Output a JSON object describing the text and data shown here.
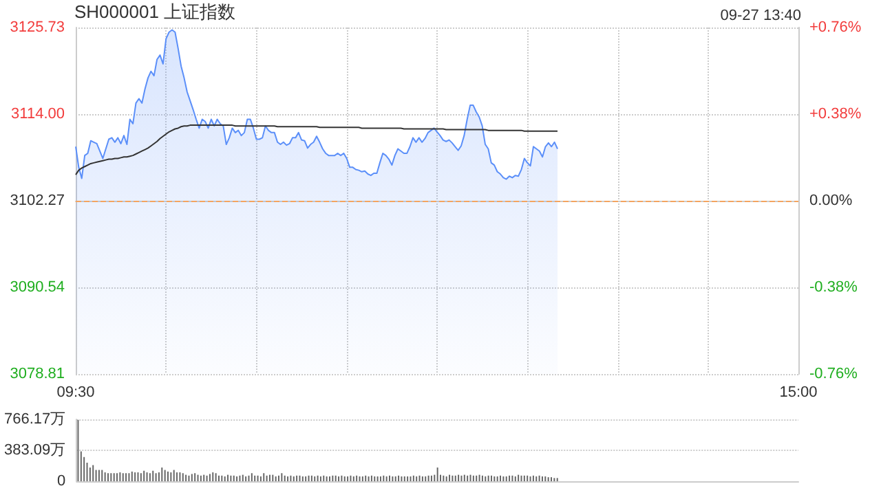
{
  "chart_data": [
    {
      "type": "line",
      "title": "SH000001 上证指数",
      "annotations": [
        "09-27 13:40"
      ],
      "categories": [
        "09:30",
        null,
        null,
        null,
        null,
        null,
        null,
        null,
        null,
        null,
        null,
        null,
        null,
        null,
        null,
        null,
        null,
        null,
        null,
        null,
        null,
        null,
        null,
        null,
        null,
        null,
        null,
        null,
        null,
        null,
        null,
        null,
        null,
        null,
        null,
        null,
        null,
        null,
        null,
        null,
        null,
        null,
        null,
        null,
        null,
        null,
        null,
        null,
        null,
        null,
        null,
        null,
        null,
        null,
        null,
        null,
        null,
        null,
        null,
        null,
        null,
        null,
        null,
        null,
        null,
        null,
        null,
        null,
        null,
        null,
        null,
        null,
        null,
        null,
        null,
        null,
        null,
        null,
        null,
        null,
        null,
        null,
        null,
        null,
        null,
        null,
        null,
        null,
        null,
        null,
        null,
        null,
        null,
        null,
        null,
        null,
        null,
        null,
        null,
        null,
        null,
        null,
        null,
        null,
        null,
        null,
        null,
        null,
        null,
        null,
        null,
        null,
        null,
        null,
        null,
        null,
        null,
        null,
        null,
        null,
        null,
        null,
        null,
        null,
        null,
        null,
        null,
        null,
        null,
        null,
        null,
        null,
        null,
        null,
        null,
        null,
        null,
        null,
        null,
        null,
        null,
        null,
        null,
        null,
        null,
        null,
        null,
        null,
        null,
        null,
        null,
        null,
        null,
        null,
        null,
        null,
        null,
        null,
        null,
        null,
        null,
        null,
        null,
        null,
        null,
        null,
        null,
        null,
        null,
        null,
        null,
        null,
        null,
        null,
        null,
        null,
        null,
        null,
        null,
        null,
        null,
        null,
        null,
        null,
        null,
        null,
        null,
        null,
        null,
        null,
        null,
        null,
        null,
        null,
        null,
        null,
        null,
        null,
        null,
        null,
        null,
        null,
        null,
        null,
        null,
        null,
        null,
        null,
        null,
        null,
        null,
        null,
        null,
        null,
        null,
        null,
        null,
        null,
        null,
        null,
        null,
        null,
        null,
        null,
        null,
        null,
        null,
        null,
        null,
        null,
        null,
        null,
        null,
        null,
        null,
        null,
        null,
        null,
        null,
        null,
        "15:00"
      ],
      "ylim": [
        3078.81,
        3125.73
      ],
      "yticks": [
        3078.81,
        3090.54,
        3102.27,
        {
          "value": 3114,
          "label": "3114.00"
        },
        3125.73
      ],
      "y2lim": [
        -0.76,
        0.76
      ],
      "y2ticks": [
        {
          "value": -0.76,
          "label": "-0.76%"
        },
        {
          "value": -0.38,
          "label": "-0.38%"
        },
        {
          "value": 0,
          "label": "0.00%"
        },
        {
          "value": 0.38,
          "label": "+0.38%"
        },
        {
          "value": 0.76,
          "label": "+0.76%"
        }
      ],
      "grid": true,
      "marker": "none",
      "line_style": "solid",
      "ref_lines": [
        {
          "axis": "y",
          "value": 3102.27,
          "color": "#f4a460",
          "line_style": "dashed"
        }
      ],
      "series": [
        {
          "type": "area",
          "color": "#5b8ff9",
          "values": [
            3109.6,
            3106.8,
            3105.3,
            3108.4,
            3108.7,
            3110.4,
            3110.2,
            3110.0,
            3109.0,
            3108.0,
            3109.3,
            3110.6,
            3110.8,
            3110.2,
            3110.8,
            3110.0,
            3111.1,
            3109.9,
            3113.3,
            3112.7,
            3115.5,
            3116.1,
            3115.5,
            3117.4,
            3118.9,
            3119.8,
            3119.2,
            3121.4,
            3122.0,
            3120.8,
            3124.2,
            3125.1,
            3125.4,
            3125.1,
            3122.9,
            3120.5,
            3118.9,
            3117.0,
            3115.8,
            3114.6,
            3113.3,
            3112.1,
            3113.3,
            3113.0,
            3112.1,
            3113.3,
            3112.4,
            3113.3,
            3112.7,
            3112.4,
            3109.9,
            3110.8,
            3112.1,
            3111.5,
            3111.8,
            3111.1,
            3111.5,
            3113.3,
            3113.3,
            3112.1,
            3110.6,
            3110.6,
            3110.8,
            3112.4,
            3111.8,
            3111.5,
            3111.5,
            3110.2,
            3109.9,
            3110.2,
            3109.8,
            3110.0,
            3110.8,
            3110.8,
            3111.5,
            3110.5,
            3110.4,
            3109.4,
            3109.9,
            3110.2,
            3111.0,
            3110.2,
            3109.3,
            3108.7,
            3108.4,
            3108.4,
            3108.4,
            3108.7,
            3108.4,
            3108.7,
            3108.0,
            3106.8,
            3106.8,
            3106.5,
            3106.4,
            3106.2,
            3106.3,
            3105.9,
            3105.7,
            3106.0,
            3106.0,
            3107.4,
            3108.7,
            3108.4,
            3107.9,
            3107.1,
            3108.4,
            3109.3,
            3109.0,
            3108.7,
            3108.7,
            3109.6,
            3110.8,
            3110.2,
            3110.8,
            3110.2,
            3110.7,
            3111.5,
            3111.8,
            3112.1,
            3111.6,
            3111.1,
            3110.5,
            3110.3,
            3110.5,
            3110.1,
            3109.6,
            3109.1,
            3109.7,
            3111.1,
            3113.3,
            3115.2,
            3115.2,
            3114.3,
            3113.6,
            3112.4,
            3109.9,
            3109.3,
            3107.4,
            3107.1,
            3106.2,
            3105.9,
            3105.4,
            3105.2,
            3105.6,
            3105.4,
            3105.7,
            3105.6,
            3106.5,
            3108.0,
            3107.4,
            3107.0,
            3109.6,
            3109.3,
            3109.0,
            3108.2,
            3109.6,
            3110.1,
            3109.6,
            3110.2,
            3109.3,
            null,
            null,
            null,
            null,
            null,
            null,
            null,
            null,
            null,
            null,
            null,
            null,
            null,
            null,
            null,
            null,
            null,
            null,
            null,
            null,
            null,
            null,
            null,
            null,
            null,
            null,
            null,
            null,
            null,
            null,
            null,
            null,
            null,
            null,
            null,
            null,
            null,
            null,
            null,
            null,
            null,
            null,
            null,
            null,
            null,
            null,
            null,
            null,
            null,
            null,
            null,
            null,
            null,
            null,
            null,
            null,
            null,
            null,
            null,
            null,
            null,
            null,
            null,
            null,
            null,
            null,
            null,
            null,
            null,
            null,
            null,
            null,
            null,
            null,
            null,
            null,
            null,
            null,
            null,
            null
          ]
        },
        {
          "type": "line",
          "color": "#333333",
          "values": [
            3105.8,
            3106.4,
            3106.7,
            3106.9,
            3107.1,
            3107.3,
            3107.4,
            3107.5,
            3107.6,
            3107.7,
            3107.8,
            3107.9,
            3107.9,
            3108.0,
            3108.0,
            3108.1,
            3108.2,
            3108.2,
            3108.3,
            3108.4,
            3108.6,
            3108.8,
            3109.0,
            3109.2,
            3109.4,
            3109.7,
            3110.0,
            3110.3,
            3110.7,
            3111.0,
            3111.3,
            3111.6,
            3111.8,
            3112.0,
            3112.1,
            3112.3,
            3112.4,
            3112.4,
            3112.5,
            3112.5,
            3112.5,
            3112.5,
            3112.5,
            3112.5,
            3112.5,
            3112.5,
            3112.5,
            3112.5,
            3112.5,
            3112.5,
            3112.5,
            3112.5,
            3112.5,
            3112.4,
            3112.4,
            3112.4,
            3112.4,
            3112.4,
            3112.4,
            3112.4,
            3112.4,
            3112.4,
            3112.4,
            3112.4,
            3112.4,
            3112.4,
            3112.4,
            3112.3,
            3112.3,
            3112.3,
            3112.3,
            3112.3,
            3112.3,
            3112.3,
            3112.3,
            3112.3,
            3112.3,
            3112.3,
            3112.3,
            3112.3,
            3112.3,
            3112.2,
            3112.2,
            3112.2,
            3112.2,
            3112.2,
            3112.2,
            3112.2,
            3112.2,
            3112.2,
            3112.2,
            3112.2,
            3112.2,
            3112.2,
            3112.2,
            3112.1,
            3112.1,
            3112.1,
            3112.1,
            3112.1,
            3112.1,
            3112.1,
            3112.1,
            3112.1,
            3112.1,
            3112.1,
            3112.1,
            3112.1,
            3112.1,
            3112.0,
            3112.0,
            3112.0,
            3112.0,
            3112.0,
            3112.0,
            3112.0,
            3112.0,
            3112.0,
            3112.0,
            3112.0,
            3112.0,
            3112.0,
            3112.0,
            3111.9,
            3111.9,
            3111.9,
            3111.9,
            3111.9,
            3111.9,
            3111.9,
            3111.9,
            3111.9,
            3111.9,
            3111.9,
            3111.9,
            3111.9,
            3111.9,
            3111.8,
            3111.8,
            3111.8,
            3111.8,
            3111.8,
            3111.8,
            3111.8,
            3111.8,
            3111.8,
            3111.8,
            3111.8,
            3111.8,
            3111.7,
            3111.7,
            3111.7,
            3111.7,
            3111.7,
            3111.7,
            3111.7,
            3111.7,
            3111.7,
            3111.7,
            3111.7,
            3111.7,
            null,
            null,
            null,
            null,
            null,
            null,
            null,
            null,
            null,
            null,
            null,
            null,
            null,
            null,
            null,
            null,
            null,
            null,
            null,
            null,
            null,
            null,
            null,
            null,
            null,
            null,
            null,
            null,
            null,
            null,
            null,
            null,
            null,
            null,
            null,
            null,
            null,
            null,
            null,
            null,
            null,
            null,
            null,
            null,
            null,
            null,
            null,
            null,
            null,
            null,
            null,
            null,
            null,
            null,
            null,
            null,
            null,
            null,
            null,
            null,
            null,
            null,
            null,
            null,
            null,
            null,
            null,
            null,
            null,
            null,
            null,
            null,
            null,
            null,
            null,
            null,
            null,
            null,
            null,
            null
          ]
        }
      ]
    },
    {
      "type": "bar",
      "tick_labels": "y",
      "grid": "y",
      "color": "#666666",
      "categories": [
        null,
        null,
        null,
        null,
        null,
        null,
        null,
        null,
        null,
        null,
        null,
        null,
        null,
        null,
        null,
        null,
        null,
        null,
        null,
        null,
        null,
        null,
        null,
        null,
        null,
        null,
        null,
        null,
        null,
        null,
        null,
        null,
        null,
        null,
        null,
        null,
        null,
        null,
        null,
        null,
        null,
        null,
        null,
        null,
        null,
        null,
        null,
        null,
        null,
        null,
        null,
        null,
        null,
        null,
        null,
        null,
        null,
        null,
        null,
        null,
        null,
        null,
        null,
        null,
        null,
        null,
        null,
        null,
        null,
        null,
        null,
        null,
        null,
        null,
        null,
        null,
        null,
        null,
        null,
        null,
        null,
        null,
        null,
        null,
        null,
        null,
        null,
        null,
        null,
        null,
        null,
        null,
        null,
        null,
        null,
        null,
        null,
        null,
        null,
        null,
        null,
        null,
        null,
        null,
        null,
        null,
        null,
        null,
        null,
        null,
        null,
        null,
        null,
        null,
        null,
        null,
        null,
        null,
        null,
        null,
        null,
        null,
        null,
        null,
        null,
        null,
        null,
        null,
        null,
        null,
        null,
        null,
        null,
        null,
        null,
        null,
        null,
        null,
        null,
        null,
        null,
        null,
        null,
        null,
        null,
        null,
        null,
        null,
        null,
        null,
        null,
        null,
        null,
        null,
        null,
        null,
        null,
        null,
        null,
        null,
        null,
        null,
        null,
        null,
        null,
        null,
        null,
        null,
        null,
        null,
        null,
        null,
        null,
        null,
        null,
        null,
        null,
        null,
        null,
        null,
        null,
        null,
        null,
        null,
        null,
        null,
        null,
        null,
        null,
        null,
        null,
        null,
        null,
        null,
        null,
        null,
        null,
        null,
        null,
        null,
        null,
        null,
        null,
        null,
        null,
        null,
        null,
        null,
        null,
        null,
        null,
        null,
        null,
        null,
        null,
        null,
        null,
        null,
        null,
        null,
        null,
        null,
        null,
        null,
        null,
        null,
        null,
        null,
        null,
        null,
        null,
        null,
        null,
        null,
        null,
        null,
        null,
        null,
        null,
        null,
        null
      ],
      "ylim": [
        0,
        766.17
      ],
      "yticks": [
        0,
        {
          "value": 383.09,
          "label": "383.09万"
        },
        {
          "value": 766.17,
          "label": "766.17万"
        }
      ],
      "values": [
        760,
        370,
        300,
        230,
        170,
        200,
        140,
        140,
        140,
        110,
        100,
        100,
        100,
        100,
        110,
        100,
        100,
        100,
        120,
        110,
        110,
        100,
        130,
        110,
        100,
        130,
        100,
        110,
        170,
        140,
        120,
        110,
        140,
        110,
        110,
        100,
        80,
        70,
        90,
        100,
        80,
        70,
        80,
        70,
        90,
        110,
        100,
        70,
        70,
        60,
        80,
        70,
        70,
        60,
        70,
        80,
        60,
        70,
        100,
        70,
        70,
        60,
        100,
        70,
        80,
        80,
        60,
        70,
        100,
        70,
        60,
        70,
        60,
        70,
        70,
        60,
        60,
        70,
        70,
        60,
        70,
        60,
        70,
        60,
        60,
        70,
        70,
        60,
        70,
        60,
        60,
        70,
        60,
        70,
        60,
        60,
        70,
        60,
        70,
        60,
        60,
        60,
        70,
        60,
        70,
        60,
        60,
        70,
        60,
        60,
        60,
        60,
        70,
        60,
        70,
        60,
        60,
        70,
        70,
        80,
        170,
        80,
        70,
        60,
        80,
        70,
        70,
        80,
        70,
        80,
        70,
        80,
        70,
        70,
        80,
        70,
        60,
        70,
        70,
        60,
        60,
        70,
        60,
        60,
        70,
        70,
        60,
        80,
        70,
        70,
        70,
        60,
        70,
        60,
        70,
        60,
        60,
        50,
        50,
        40,
        40,
        null,
        null,
        null,
        null,
        null,
        null,
        null,
        null,
        null,
        null,
        null,
        null,
        null,
        null,
        null,
        null,
        null,
        null,
        null,
        null,
        null,
        null,
        null,
        null,
        null,
        null,
        null,
        null,
        null,
        null,
        null,
        null,
        null,
        null,
        null,
        null,
        null,
        null,
        null,
        null,
        null,
        null,
        null,
        null,
        null,
        null,
        null,
        null,
        null,
        null,
        null,
        null,
        null,
        null,
        null,
        null,
        null,
        null,
        null,
        null,
        null,
        null,
        null,
        null,
        null,
        null,
        null,
        null,
        null,
        null,
        null,
        null,
        null,
        null,
        null,
        null,
        null,
        null,
        null,
        null
      ]
    }
  ]
}
